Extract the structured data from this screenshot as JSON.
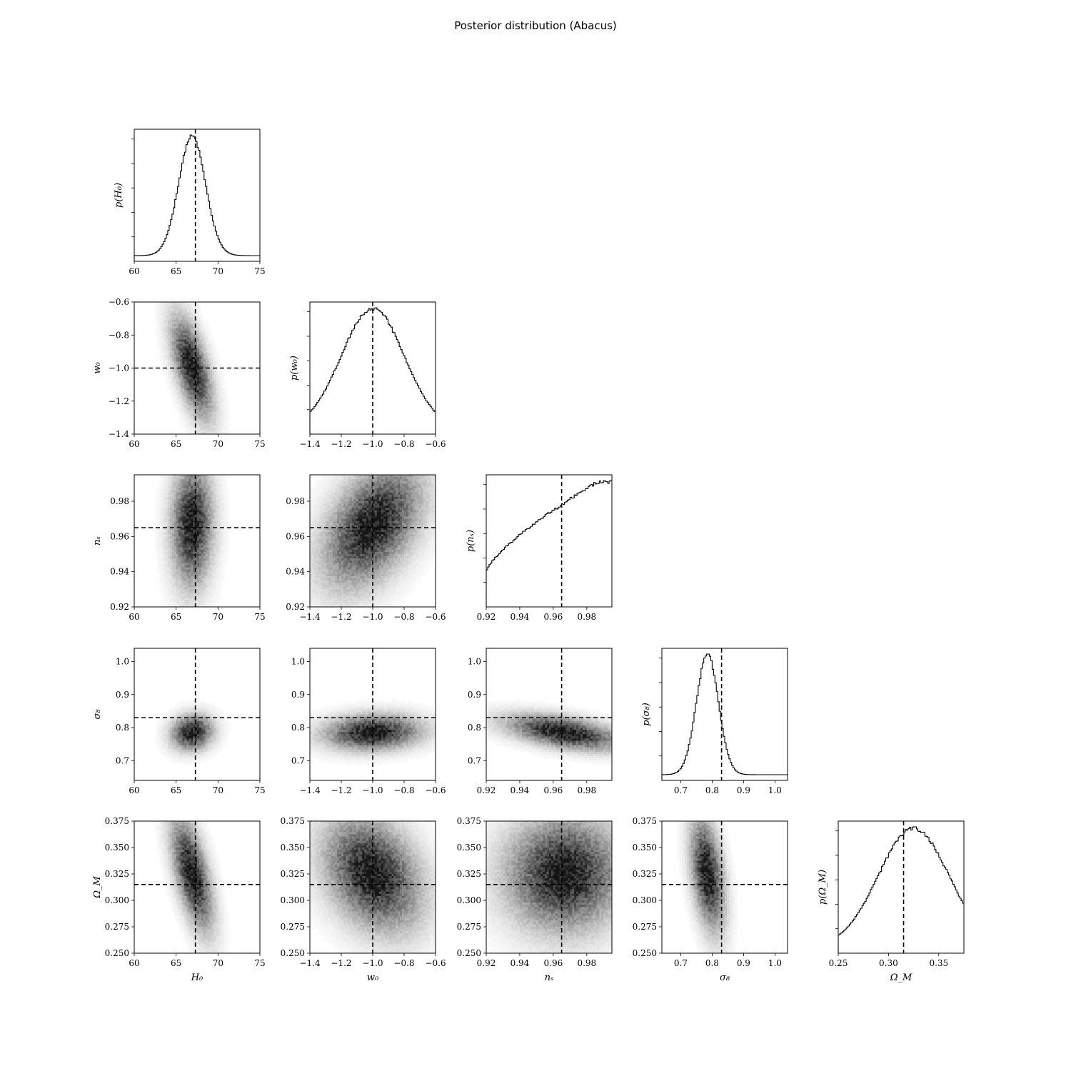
{
  "title": "Posterior distribution (Abacus)",
  "chart_data": {
    "type": "corner",
    "title": "Posterior distribution (Abacus)",
    "parameters": [
      {
        "name": "H_0",
        "label": "H₀",
        "hist_ylabel": "p(H₀)",
        "range": [
          60,
          75
        ],
        "ticks": [
          60,
          65,
          70,
          75
        ],
        "tick_labels": [
          "60",
          "65",
          "70",
          "75"
        ],
        "truth": 67.3,
        "mean": 66.9,
        "sd": 1.6,
        "shape": "gaussian"
      },
      {
        "name": "w_0",
        "label": "w₀",
        "hist_ylabel": "p(w₀)",
        "range": [
          -1.4,
          -0.6
        ],
        "ticks": [
          -1.4,
          -1.2,
          -1.0,
          -0.8,
          -0.6
        ],
        "tick_labels": [
          "−1.4",
          "−1.2",
          "−1.0",
          "−0.8",
          "−0.6"
        ],
        "truth": -1.0,
        "mean": -1.0,
        "sd": 0.2,
        "shape": "gaussian"
      },
      {
        "name": "n_s",
        "label": "nₛ",
        "hist_ylabel": "p(nₛ)",
        "range": [
          0.92,
          0.995
        ],
        "ticks": [
          0.92,
          0.94,
          0.96,
          0.98
        ],
        "tick_labels": [
          "0.92",
          "0.94",
          "0.96",
          "0.98"
        ],
        "truth": 0.965,
        "shape": "rising"
      },
      {
        "name": "sigma_8",
        "label": "σ₈",
        "hist_ylabel": "p(σ₈)",
        "range": [
          0.64,
          1.04
        ],
        "ticks": [
          0.7,
          0.8,
          0.9,
          1.0
        ],
        "tick_labels": [
          "0.7",
          "0.8",
          "0.9",
          "1.0"
        ],
        "truth": 0.83,
        "mean": 0.785,
        "sd": 0.035,
        "shape": "gaussian"
      },
      {
        "name": "Omega_M",
        "label": "Ω_M",
        "hist_ylabel": "p(Ω_M)",
        "range": [
          0.25,
          0.375
        ],
        "ticks": [
          0.25,
          0.275,
          0.3,
          0.325,
          0.35,
          0.375
        ],
        "tick_labels": [
          "0.250",
          "0.275",
          "0.300",
          "0.325",
          "0.350",
          "0.375"
        ],
        "diag_ticks": [
          0.25,
          0.3,
          0.35
        ],
        "diag_tick_labels": [
          "0.25",
          "0.30",
          "0.35"
        ],
        "truth": 0.315,
        "mean": 0.325,
        "sd": 0.035,
        "shape": "gaussian"
      }
    ],
    "correlations": [
      {
        "pair": [
          "H_0",
          "w_0"
        ],
        "rho": -0.6
      },
      {
        "pair": [
          "H_0",
          "n_s"
        ],
        "rho": 0.05
      },
      {
        "pair": [
          "w_0",
          "n_s"
        ],
        "rho": 0.45
      },
      {
        "pair": [
          "H_0",
          "sigma_8"
        ],
        "rho": 0.1
      },
      {
        "pair": [
          "w_0",
          "sigma_8"
        ],
        "rho": 0.1
      },
      {
        "pair": [
          "n_s",
          "sigma_8"
        ],
        "rho": -0.5
      },
      {
        "pair": [
          "H_0",
          "Omega_M"
        ],
        "rho": -0.6
      },
      {
        "pair": [
          "w_0",
          "Omega_M"
        ],
        "rho": -0.3
      },
      {
        "pair": [
          "n_s",
          "Omega_M"
        ],
        "rho": 0.0
      },
      {
        "pair": [
          "sigma_8",
          "Omega_M"
        ],
        "rho": -0.4
      }
    ],
    "truth_line_style": "dashed black",
    "colormap": "greys"
  }
}
